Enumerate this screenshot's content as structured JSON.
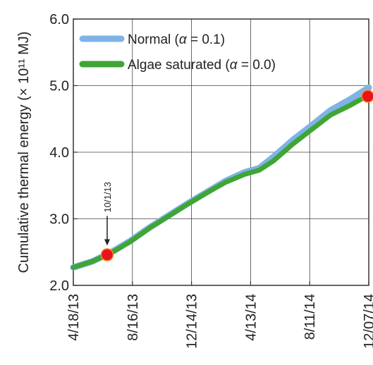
{
  "chart_data": {
    "type": "line",
    "xlabel": "",
    "ylabel": "Cumulative thermal energy (× 10¹¹ MJ)",
    "xticks": [
      "4/18/13",
      "8/16/13",
      "12/14/13",
      "4/13/14",
      "8/11/14",
      "12/07/14"
    ],
    "yticks": [
      "2.0",
      "3.0",
      "4.0",
      "5.0",
      "6.0"
    ],
    "ylim": [
      2.0,
      6.0
    ],
    "grid": true,
    "legend_position": "top-left",
    "legend": {
      "normal_prefix": "Normal (",
      "normal_suffix": " = 0.1)",
      "algae_prefix": "Algae saturated (",
      "algae_suffix": " = 0.0)",
      "symbol": "α"
    },
    "annotation": {
      "text": "10/1/13",
      "x": 3.55,
      "y": 2.46
    },
    "highlight_points": [
      {
        "x": 3.55,
        "y": 2.46
      },
      {
        "x": 30.9,
        "y": 4.84
      }
    ],
    "series": [
      {
        "name": "Normal (α = 0.1)",
        "color": "#7fb3e6",
        "x": [
          0,
          2,
          4,
          6,
          8,
          10,
          12,
          14,
          16,
          18,
          19.5,
          21,
          23,
          25,
          27,
          29,
          31
        ],
        "y": [
          2.27,
          2.36,
          2.5,
          2.67,
          2.87,
          3.05,
          3.23,
          3.4,
          3.57,
          3.7,
          3.76,
          3.93,
          4.18,
          4.4,
          4.63,
          4.79,
          4.97
        ]
      },
      {
        "name": "Algae saturated (α = 0.0)",
        "color": "#3fa535",
        "x": [
          0,
          2,
          4,
          6,
          8,
          10,
          12,
          14,
          16,
          18,
          19.5,
          21,
          23,
          25,
          27,
          29,
          31
        ],
        "y": [
          2.27,
          2.36,
          2.49,
          2.66,
          2.86,
          3.04,
          3.22,
          3.39,
          3.55,
          3.67,
          3.73,
          3.87,
          4.12,
          4.34,
          4.56,
          4.7,
          4.86
        ]
      }
    ]
  }
}
